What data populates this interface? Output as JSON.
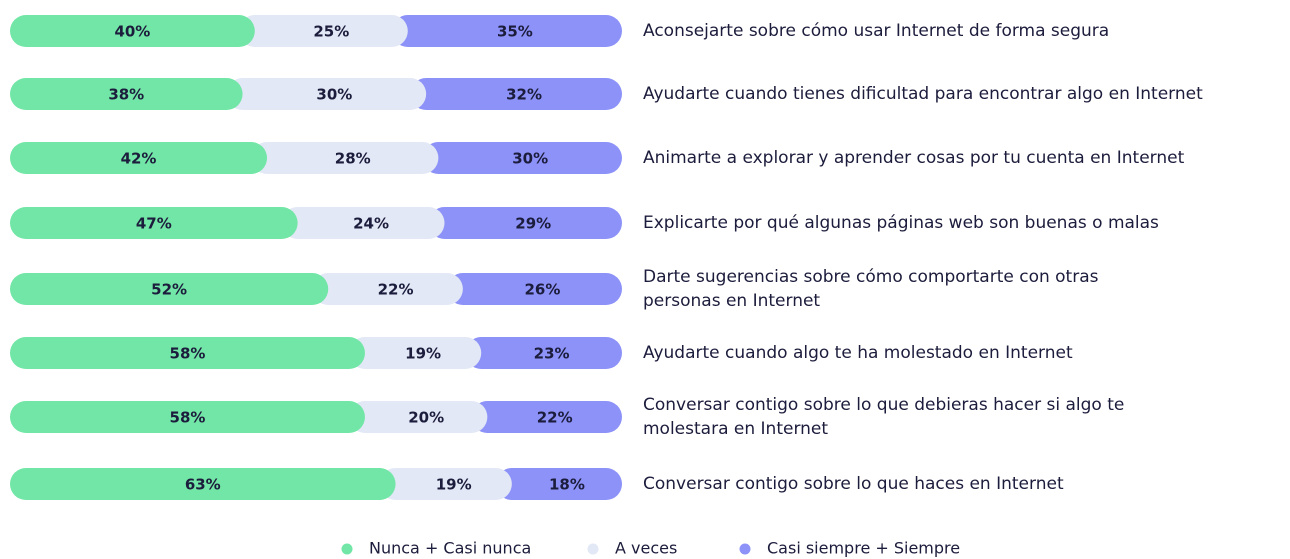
{
  "chart_data": {
    "type": "stacked-bar-horizontal",
    "categories": [
      "Aconsejarte sobre cómo usar Internet de forma segura",
      "Ayudarte cuando tienes dificultad para encontrar algo en Internet",
      "Animarte a explorar y aprender cosas por tu cuenta en Internet",
      "Explicarte por qué algunas páginas web son buenas o malas",
      "Darte sugerencias sobre cómo comportarte con otras personas en Internet",
      "Ayudarte cuando algo te ha molestado en Internet",
      "Conversar contigo sobre lo que debieras hacer si algo te molestara en Internet",
      "Conversar contigo sobre lo que haces en Internet"
    ],
    "series": [
      {
        "name": "Nunca + Casi nunca",
        "color": "#72e6a6",
        "values": [
          40,
          38,
          42,
          47,
          52,
          58,
          58,
          63
        ],
        "value_labels": [
          "40%",
          "38%",
          "42%",
          "47%",
          "52%",
          "58%",
          "58%",
          "63%"
        ]
      },
      {
        "name": "A veces",
        "color": "#e2e8f5",
        "values": [
          25,
          30,
          28,
          24,
          22,
          19,
          20,
          19
        ],
        "value_labels": [
          "25%",
          "30%",
          "28%",
          "24%",
          "22%",
          "19%",
          "20%",
          "19%"
        ]
      },
      {
        "name": "Casi siempre + Siempre",
        "color": "#8c92f8",
        "values": [
          35,
          32,
          30,
          29,
          26,
          23,
          22,
          18
        ],
        "value_labels": [
          "35%",
          "32%",
          "30%",
          "29%",
          "26%",
          "23%",
          "22%",
          "18%"
        ]
      }
    ],
    "xlim": [
      0,
      100
    ],
    "legend": "bottom"
  }
}
